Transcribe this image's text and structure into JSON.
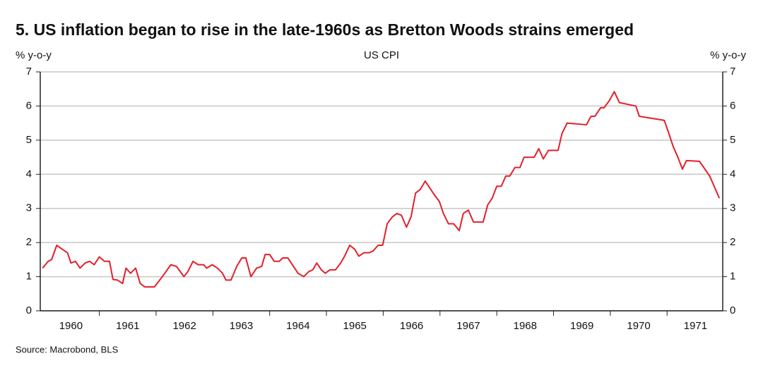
{
  "chart_data": {
    "type": "line",
    "title": "5.  US inflation began to rise in the late-1960s as Bretton Woods strains emerged",
    "subtitle": "US CPI",
    "y_label": "% y-o-y",
    "y2_label": "% y-o-y",
    "source": "Source: Macrobond, BLS",
    "x": [
      1960.0,
      1960.1,
      1960.16,
      1960.25,
      1960.35,
      1960.44,
      1960.5,
      1960.58,
      1960.66,
      1960.75,
      1960.83,
      1960.91,
      1961.0,
      1961.09,
      1961.18,
      1961.24,
      1961.32,
      1961.41,
      1961.47,
      1961.55,
      1961.64,
      1961.72,
      1961.8,
      1961.97,
      1962.11,
      1962.26,
      1962.36,
      1962.49,
      1962.56,
      1962.65,
      1962.74,
      1962.84,
      1962.89,
      1962.99,
      1963.08,
      1963.17,
      1963.23,
      1963.32,
      1963.42,
      1963.51,
      1963.58,
      1963.67,
      1963.77,
      1963.86,
      1963.92,
      1964.0,
      1964.08,
      1964.17,
      1964.23,
      1964.32,
      1964.42,
      1964.5,
      1964.6,
      1964.69,
      1964.76,
      1964.83,
      1964.91,
      1964.98,
      1965.06,
      1965.16,
      1965.25,
      1965.32,
      1965.41,
      1965.5,
      1965.57,
      1965.66,
      1965.75,
      1965.82,
      1965.91,
      1965.99,
      1966.07,
      1966.16,
      1966.24,
      1966.32,
      1966.41,
      1966.49,
      1966.57,
      1966.65,
      1966.74,
      1966.82,
      1966.9,
      1966.99,
      1967.06,
      1967.15,
      1967.24,
      1967.34,
      1967.41,
      1967.5,
      1967.59,
      1967.76,
      1967.84,
      1967.92,
      1968.0,
      1968.08,
      1968.16,
      1968.23,
      1968.32,
      1968.41,
      1968.48,
      1968.66,
      1968.74,
      1968.82,
      1968.91,
      1969.08,
      1969.15,
      1969.24,
      1969.58,
      1969.66,
      1969.73,
      1969.83,
      1969.89,
      1969.98,
      1970.07,
      1970.16,
      1970.45,
      1970.51,
      1970.95,
      1971.01,
      1971.11,
      1971.19,
      1971.27,
      1971.34,
      1971.57,
      1971.75,
      1971.92
    ],
    "series": [
      {
        "name": "US CPI",
        "color": "#e3202a",
        "values": [
          1.25,
          1.45,
          1.5,
          1.92,
          1.8,
          1.7,
          1.4,
          1.45,
          1.25,
          1.4,
          1.45,
          1.35,
          1.58,
          1.45,
          1.45,
          0.92,
          0.9,
          0.8,
          1.25,
          1.1,
          1.25,
          0.8,
          0.7,
          0.7,
          1.0,
          1.35,
          1.3,
          1.0,
          1.15,
          1.45,
          1.35,
          1.35,
          1.25,
          1.35,
          1.25,
          1.1,
          0.9,
          0.9,
          1.3,
          1.55,
          1.55,
          1.0,
          1.25,
          1.3,
          1.65,
          1.65,
          1.45,
          1.45,
          1.55,
          1.55,
          1.3,
          1.1,
          1.0,
          1.15,
          1.2,
          1.4,
          1.2,
          1.1,
          1.2,
          1.2,
          1.4,
          1.6,
          1.92,
          1.8,
          1.6,
          1.7,
          1.7,
          1.75,
          1.92,
          1.92,
          2.55,
          2.75,
          2.85,
          2.8,
          2.45,
          2.75,
          3.45,
          3.55,
          3.8,
          3.6,
          3.4,
          3.2,
          2.85,
          2.55,
          2.55,
          2.35,
          2.85,
          2.95,
          2.6,
          2.6,
          3.1,
          3.3,
          3.65,
          3.65,
          3.95,
          3.95,
          4.2,
          4.2,
          4.5,
          4.5,
          4.75,
          4.45,
          4.7,
          4.7,
          5.2,
          5.5,
          5.45,
          5.7,
          5.7,
          5.95,
          5.95,
          6.15,
          6.42,
          6.1,
          6.0,
          5.7,
          5.58,
          5.3,
          4.8,
          4.5,
          4.15,
          4.4,
          4.38,
          3.95,
          3.3
        ]
      }
    ],
    "xlim": [
      1959.96,
      1971.98
    ],
    "xticks": [
      {
        "value": 1960.5,
        "label": "1960"
      },
      {
        "value": 1961.5,
        "label": "1961"
      },
      {
        "value": 1962.5,
        "label": "1962"
      },
      {
        "value": 1963.5,
        "label": "1963"
      },
      {
        "value": 1964.5,
        "label": "1964"
      },
      {
        "value": 1965.5,
        "label": "1965"
      },
      {
        "value": 1966.5,
        "label": "1966"
      },
      {
        "value": 1967.5,
        "label": "1967"
      },
      {
        "value": 1968.5,
        "label": "1968"
      },
      {
        "value": 1969.5,
        "label": "1969"
      },
      {
        "value": 1970.5,
        "label": "1970"
      },
      {
        "value": 1971.5,
        "label": "1971"
      }
    ],
    "ylim": [
      0,
      7
    ],
    "yticks": [
      0,
      1,
      2,
      3,
      4,
      5,
      6,
      7
    ],
    "y2lim": [
      0,
      7
    ],
    "y2ticks": [
      0,
      1,
      2,
      3,
      4,
      5,
      6,
      7
    ],
    "grid": true
  }
}
